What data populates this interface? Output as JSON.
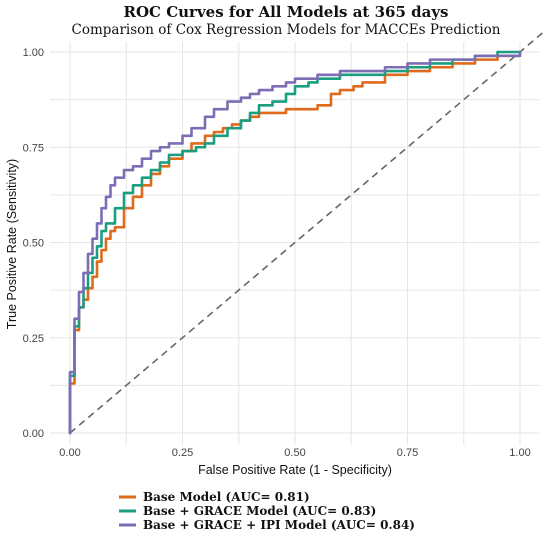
{
  "chart_data": {
    "type": "line",
    "title": "ROC Curves for All Models at 365 days",
    "subtitle": "Comparison of Cox Regression Models for MACCEs Prediction",
    "xlabel": "False Positive Rate (1 - Specificity)",
    "ylabel": "True Positive Rate (Sensitivity)",
    "xlim": [
      0,
      1
    ],
    "ylim": [
      0,
      1
    ],
    "x_ticks": [
      "0.00",
      "0.25",
      "0.50",
      "0.75",
      "1.00"
    ],
    "y_ticks": [
      "0.00",
      "0.25",
      "0.50",
      "0.75",
      "1.00"
    ],
    "grid": true,
    "legend_position": "bottom",
    "reference_line": "diagonal dashed",
    "series": [
      {
        "name": "Base Model (AUC= 0.81)",
        "color": "#e06a1b",
        "x": [
          0.0,
          0.0,
          0.01,
          0.01,
          0.02,
          0.02,
          0.03,
          0.04,
          0.05,
          0.06,
          0.07,
          0.08,
          0.09,
          0.1,
          0.12,
          0.14,
          0.16,
          0.18,
          0.2,
          0.22,
          0.25,
          0.27,
          0.3,
          0.32,
          0.34,
          0.36,
          0.38,
          0.4,
          0.42,
          0.45,
          0.48,
          0.5,
          0.55,
          0.58,
          0.6,
          0.63,
          0.65,
          0.7,
          0.75,
          0.8,
          0.85,
          0.9,
          0.95,
          0.98,
          1.0
        ],
        "y": [
          0.0,
          0.13,
          0.15,
          0.27,
          0.3,
          0.33,
          0.35,
          0.38,
          0.41,
          0.45,
          0.48,
          0.51,
          0.53,
          0.54,
          0.59,
          0.62,
          0.65,
          0.68,
          0.7,
          0.72,
          0.74,
          0.76,
          0.78,
          0.79,
          0.8,
          0.81,
          0.82,
          0.83,
          0.84,
          0.84,
          0.85,
          0.85,
          0.86,
          0.89,
          0.9,
          0.91,
          0.92,
          0.94,
          0.95,
          0.96,
          0.97,
          0.98,
          0.99,
          0.99,
          1.0
        ]
      },
      {
        "name": "Base + GRACE Model (AUC= 0.83)",
        "color": "#1a9e80",
        "x": [
          0.0,
          0.0,
          0.01,
          0.01,
          0.02,
          0.03,
          0.04,
          0.05,
          0.06,
          0.07,
          0.08,
          0.1,
          0.12,
          0.14,
          0.16,
          0.18,
          0.2,
          0.22,
          0.25,
          0.28,
          0.3,
          0.32,
          0.35,
          0.38,
          0.4,
          0.42,
          0.45,
          0.48,
          0.5,
          0.53,
          0.55,
          0.6,
          0.65,
          0.7,
          0.75,
          0.8,
          0.85,
          0.9,
          0.95,
          1.0
        ],
        "y": [
          0.0,
          0.15,
          0.2,
          0.28,
          0.33,
          0.38,
          0.42,
          0.46,
          0.49,
          0.53,
          0.55,
          0.59,
          0.63,
          0.65,
          0.67,
          0.69,
          0.71,
          0.73,
          0.74,
          0.75,
          0.76,
          0.78,
          0.8,
          0.82,
          0.84,
          0.86,
          0.87,
          0.89,
          0.91,
          0.92,
          0.93,
          0.94,
          0.94,
          0.95,
          0.96,
          0.97,
          0.98,
          0.99,
          1.0,
          1.0
        ]
      },
      {
        "name": "Base + GRACE + IPI Model (AUC= 0.84)",
        "color": "#7e6db5",
        "x": [
          0.0,
          0.0,
          0.01,
          0.01,
          0.02,
          0.03,
          0.04,
          0.05,
          0.06,
          0.07,
          0.08,
          0.09,
          0.1,
          0.12,
          0.14,
          0.16,
          0.18,
          0.2,
          0.22,
          0.25,
          0.27,
          0.3,
          0.32,
          0.35,
          0.38,
          0.4,
          0.42,
          0.45,
          0.48,
          0.5,
          0.55,
          0.6,
          0.65,
          0.7,
          0.75,
          0.8,
          0.9,
          1.0
        ],
        "y": [
          0.0,
          0.16,
          0.22,
          0.3,
          0.37,
          0.42,
          0.47,
          0.51,
          0.55,
          0.59,
          0.62,
          0.65,
          0.67,
          0.69,
          0.7,
          0.72,
          0.74,
          0.75,
          0.76,
          0.78,
          0.8,
          0.83,
          0.85,
          0.87,
          0.88,
          0.89,
          0.9,
          0.91,
          0.92,
          0.93,
          0.94,
          0.95,
          0.95,
          0.96,
          0.97,
          0.98,
          0.99,
          1.0
        ]
      }
    ]
  }
}
